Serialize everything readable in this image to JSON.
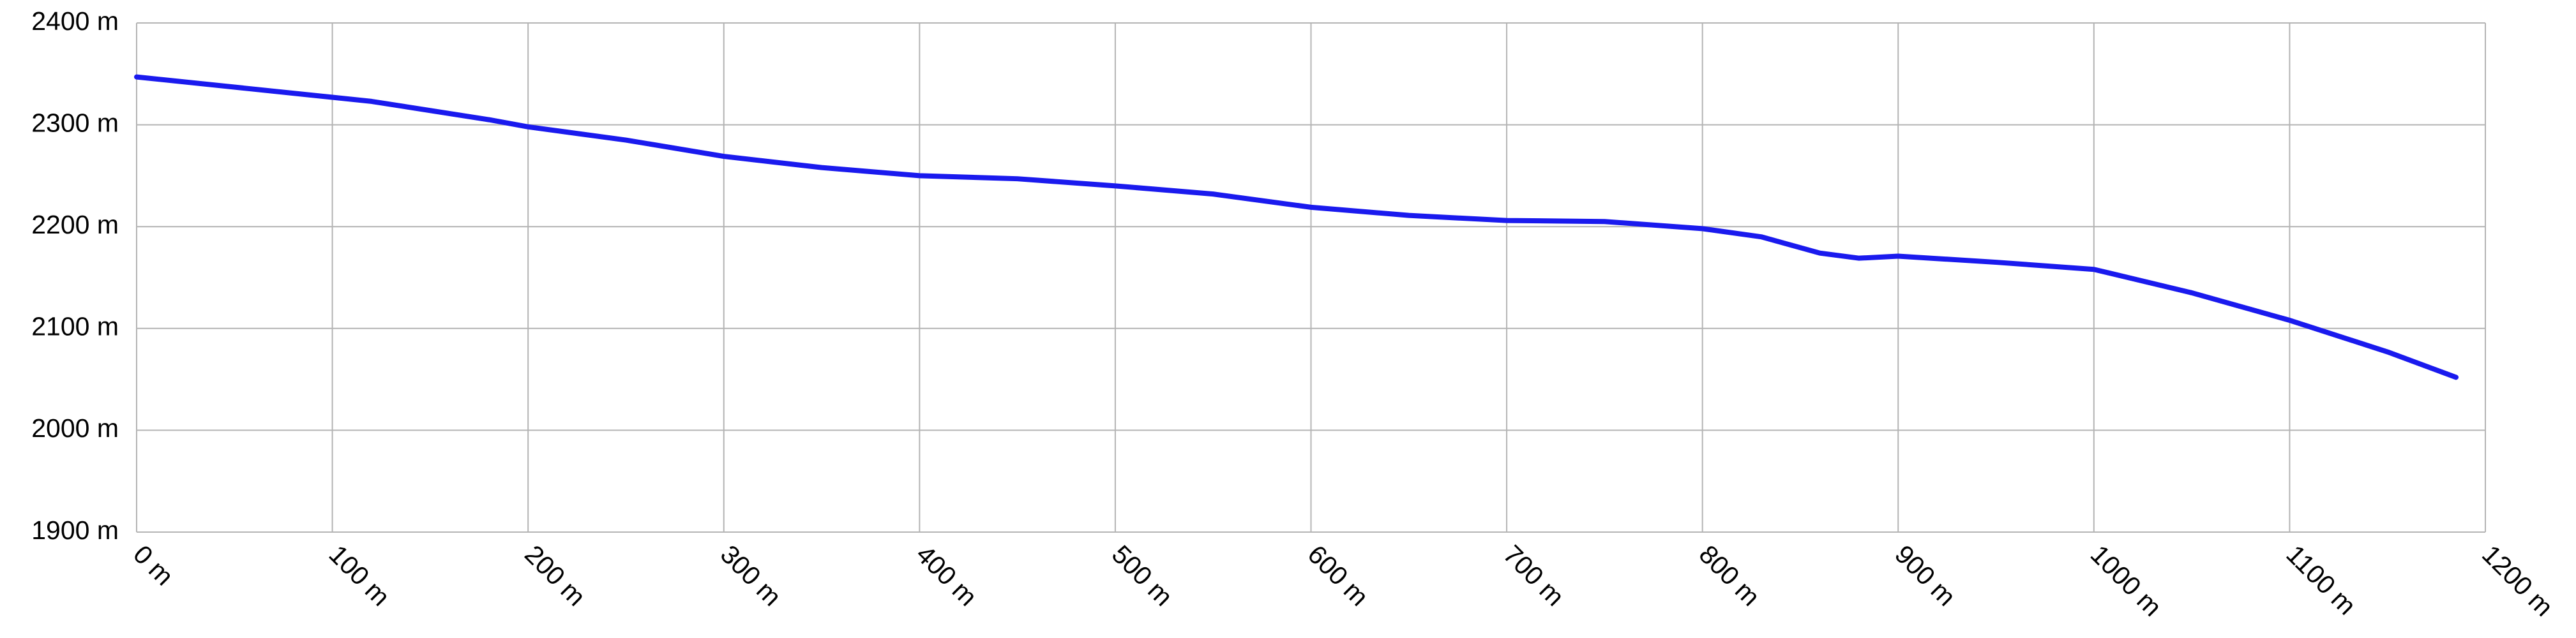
{
  "chart_data": {
    "type": "line",
    "x": [
      0,
      120,
      180,
      200,
      250,
      300,
      350,
      400,
      450,
      500,
      550,
      600,
      650,
      700,
      750,
      800,
      830,
      860,
      880,
      900,
      950,
      1000,
      1050,
      1100,
      1150,
      1185
    ],
    "series": [
      {
        "color": "#1a1aee",
        "values": [
          2347,
          2323,
          2305,
          2298,
          2285,
          2269,
          2258,
          2250,
          2247,
          2240,
          2232,
          2219,
          2211,
          2206,
          2205,
          2198,
          2190,
          2174,
          2169,
          2171,
          2165,
          2158,
          2135,
          2108,
          2077,
          2052
        ]
      }
    ],
    "xlim": [
      0,
      1200
    ],
    "xticks": [
      {
        "value": 0,
        "label": "0 m"
      },
      {
        "value": 100,
        "label": "100 m"
      },
      {
        "value": 200,
        "label": "200 m"
      },
      {
        "value": 300,
        "label": "300 m"
      },
      {
        "value": 400,
        "label": "400 m"
      },
      {
        "value": 500,
        "label": "500 m"
      },
      {
        "value": 600,
        "label": "600 m"
      },
      {
        "value": 700,
        "label": "700 m"
      },
      {
        "value": 800,
        "label": "800 m"
      },
      {
        "value": 900,
        "label": "900 m"
      },
      {
        "value": 1000,
        "label": "1000 m"
      },
      {
        "value": 1100,
        "label": "1100 m"
      },
      {
        "value": 1200,
        "label": "1200 m"
      }
    ],
    "ylim": [
      1900,
      2400
    ],
    "yticks": [
      {
        "value": 1900,
        "label": "1900 m"
      },
      {
        "value": 2000,
        "label": "2000 m"
      },
      {
        "value": 2100,
        "label": "2100 m"
      },
      {
        "value": 2200,
        "label": "2200 m"
      },
      {
        "value": 2300,
        "label": "2300 m"
      },
      {
        "value": 2400,
        "label": "2400 m"
      }
    ],
    "grid": true
  }
}
